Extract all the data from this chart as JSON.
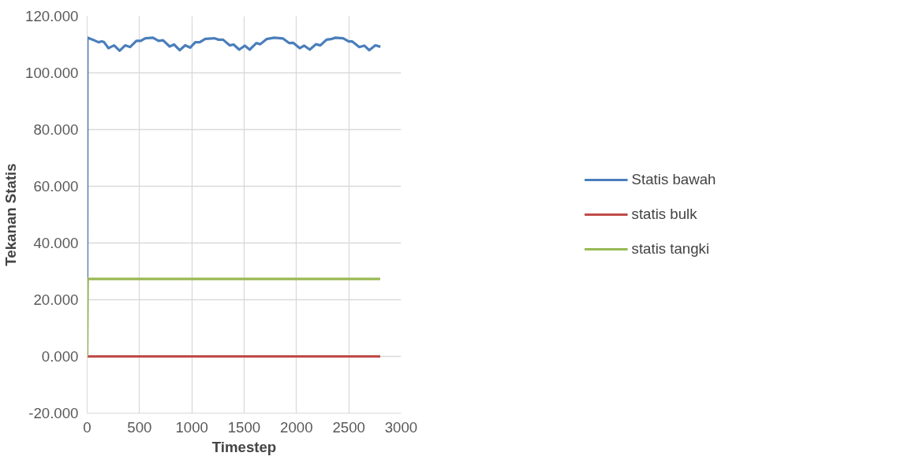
{
  "chart_data": {
    "type": "line",
    "xlabel": "Timestep",
    "ylabel": "Tekanan Statis",
    "xlim": [
      0,
      3000
    ],
    "ylim": [
      -20,
      120
    ],
    "xticks": [
      0,
      500,
      1000,
      1500,
      2000,
      2500,
      3000
    ],
    "yticks": [
      {
        "value": -20,
        "label": "-20.000"
      },
      {
        "value": 0,
        "label": "0.000"
      },
      {
        "value": 20,
        "label": "20.000"
      },
      {
        "value": 40,
        "label": "40.000"
      },
      {
        "value": 60,
        "label": "60.000"
      },
      {
        "value": 80,
        "label": "80.000"
      },
      {
        "value": 100,
        "label": "100.000"
      },
      {
        "value": 120,
        "label": "120.000"
      }
    ],
    "grid": true,
    "legend": "right",
    "marker": "none",
    "line_style": "solid",
    "series": [
      {
        "name": "Statis bawah",
        "color": "#4a7ebb",
        "x": [
          0,
          2,
          54,
          108,
          140,
          162,
          204,
          257,
          310,
          363,
          411,
          470,
          512,
          555,
          629,
          682,
          725,
          788,
          830,
          884,
          937,
          985,
          1033,
          1075,
          1128,
          1214,
          1256,
          1298,
          1362,
          1399,
          1453,
          1506,
          1553,
          1617,
          1654,
          1713,
          1787,
          1872,
          1931,
          1968,
          2032,
          2074,
          2127,
          2186,
          2228,
          2287,
          2329,
          2372,
          2446,
          2499,
          2531,
          2600,
          2648,
          2695,
          2754,
          2802
        ],
        "values": [
          27.3,
          112.4,
          111.7,
          110.8,
          111.1,
          110.8,
          108.7,
          109.7,
          107.8,
          109.7,
          109.1,
          111.3,
          111.3,
          112.2,
          112.4,
          111.3,
          111.5,
          109.3,
          110.0,
          108.0,
          109.7,
          108.9,
          110.8,
          110.8,
          112.0,
          112.2,
          111.7,
          111.7,
          109.7,
          110.0,
          108.2,
          109.6,
          108.2,
          110.5,
          110.1,
          111.9,
          112.4,
          112.1,
          110.5,
          110.6,
          108.7,
          109.6,
          108.2,
          110.1,
          109.7,
          111.7,
          111.9,
          112.4,
          112.2,
          111.1,
          111.1,
          109.1,
          109.6,
          108.0,
          109.7,
          109.2
        ]
      },
      {
        "name": "statis bulk",
        "color": "#be4b48",
        "x": [
          0,
          2800
        ],
        "values": [
          0,
          0
        ]
      },
      {
        "name": "statis tangki",
        "color": "#98b954",
        "x": [
          0,
          5,
          2800
        ],
        "values": [
          0,
          27.3,
          27.3
        ]
      }
    ]
  }
}
